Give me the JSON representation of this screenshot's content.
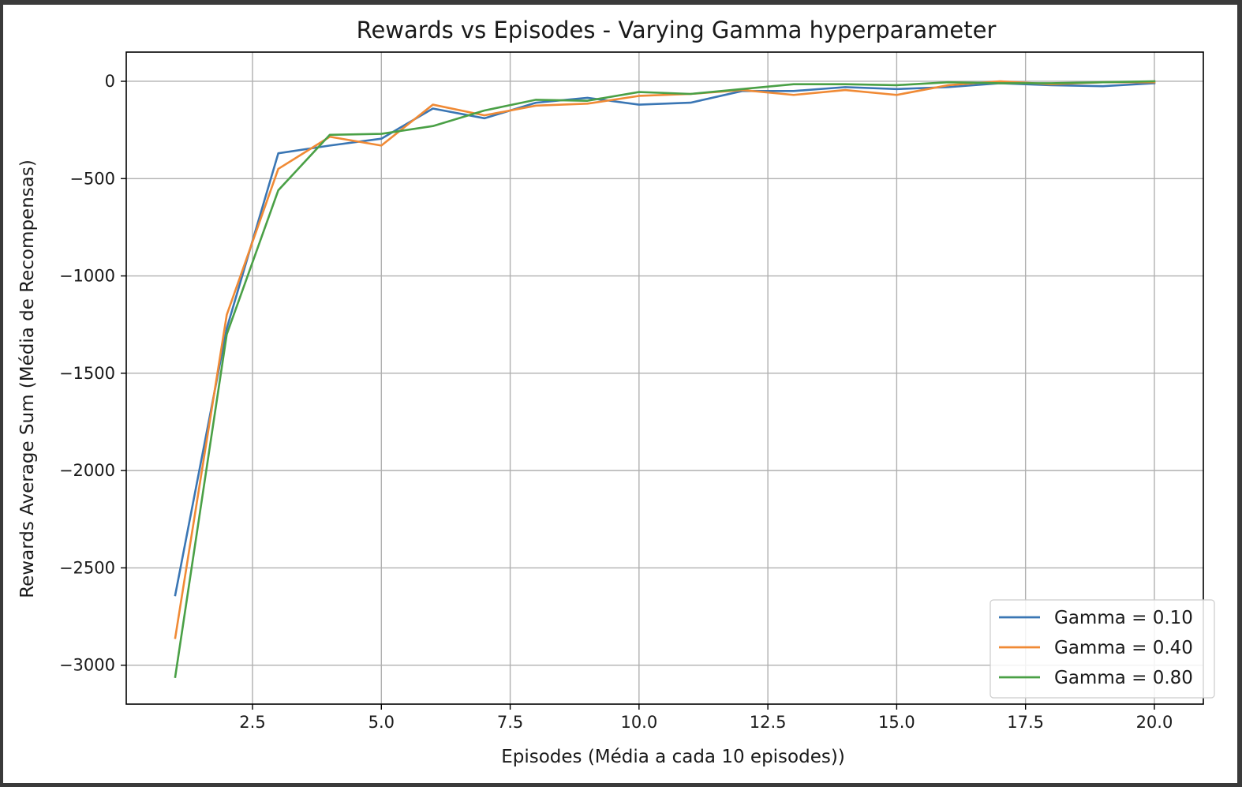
{
  "chart_data": {
    "type": "line",
    "title": "Rewards vs Episodes - Varying Gamma hyperparameter",
    "xlabel": "Episodes (Média a cada 10 episodes))",
    "ylabel": "Rewards Average Sum (Média de Recompensas)",
    "xlim": [
      0.05,
      20.95
    ],
    "ylim": [
      -3200,
      150
    ],
    "xticks": [
      2.5,
      5.0,
      7.5,
      10.0,
      12.5,
      15.0,
      17.5,
      20.0
    ],
    "xtick_labels": [
      "2.5",
      "5.0",
      "7.5",
      "10.0",
      "12.5",
      "15.0",
      "17.5",
      "20.0"
    ],
    "yticks": [
      0,
      -500,
      -1000,
      -1500,
      -2000,
      -2500,
      -3000
    ],
    "ytick_labels": [
      "0",
      "−500",
      "−1000",
      "−1500",
      "−2000",
      "−2500",
      "−3000"
    ],
    "grid": true,
    "legend_position": "lower-right",
    "x": [
      1,
      2,
      3,
      4,
      5,
      6,
      7,
      8,
      9,
      10,
      11,
      12,
      13,
      14,
      15,
      16,
      17,
      18,
      19,
      20
    ],
    "series": [
      {
        "name": "Gamma = 0.10",
        "color": "#3a76b4",
        "values": [
          -2640,
          -1270,
          -370,
          -330,
          -295,
          -140,
          -190,
          -110,
          -85,
          -120,
          -110,
          -50,
          -50,
          -30,
          -40,
          -30,
          -10,
          -20,
          -25,
          -10
        ]
      },
      {
        "name": "Gamma = 0.40",
        "color": "#f08a35",
        "values": [
          -2860,
          -1200,
          -450,
          -285,
          -330,
          -120,
          -175,
          -125,
          -115,
          -75,
          -65,
          -45,
          -70,
          -45,
          -70,
          -20,
          0,
          -15,
          -5,
          -5
        ]
      },
      {
        "name": "Gamma = 0.80",
        "color": "#4aa046",
        "values": [
          -3060,
          -1300,
          -560,
          -275,
          -270,
          -230,
          -150,
          -95,
          -100,
          -55,
          -65,
          -40,
          -15,
          -15,
          -20,
          -5,
          -10,
          -10,
          -5,
          0
        ]
      }
    ]
  }
}
